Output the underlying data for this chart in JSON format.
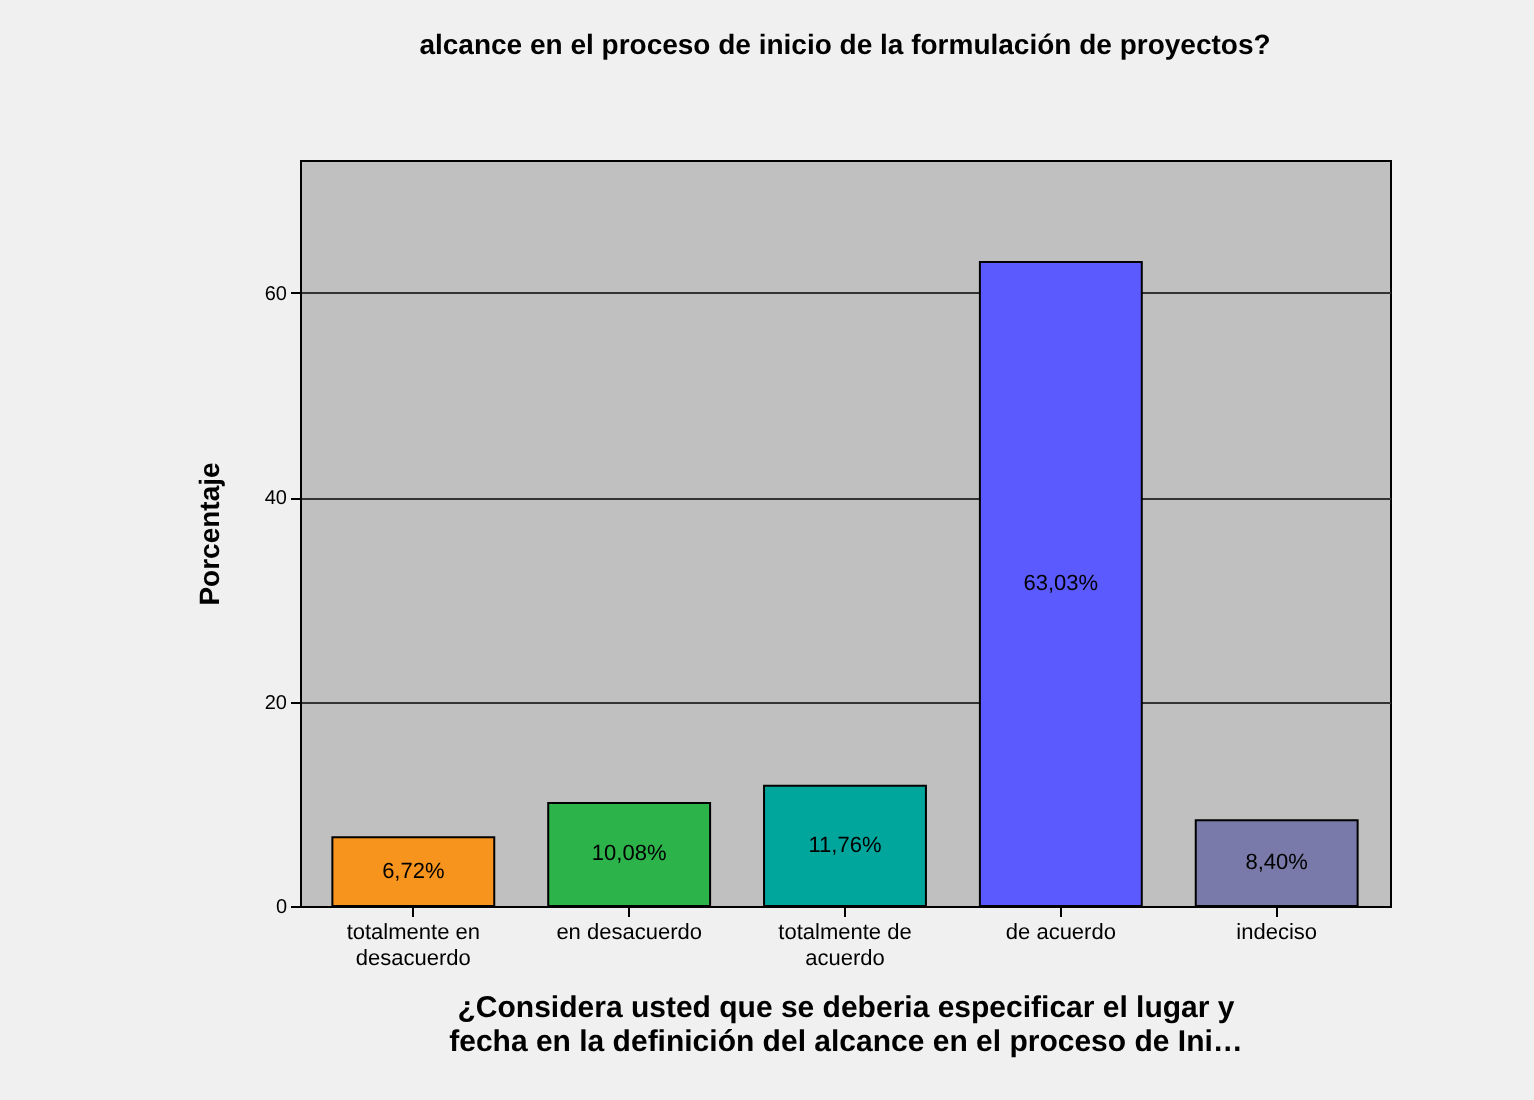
{
  "chart_data": {
    "type": "bar",
    "title": "alcance en el proceso de inicio de la formulación de proyectos?",
    "xlabel": "¿Considera usted que se deberia especificar el lugar y fecha en la  definición del alcance en el proceso de Ini…",
    "ylabel": "Porcentaje",
    "categories": [
      "totalmente en desacuerdo",
      "en desacuerdo",
      "totalmente de acuerdo",
      "de acuerdo",
      "indeciso"
    ],
    "values": [
      6.72,
      10.08,
      11.76,
      63.03,
      8.4
    ],
    "value_labels": [
      "6,72%",
      "10,08%",
      "11,76%",
      "63,03%",
      "8,40%"
    ],
    "colors": [
      "#f7941d",
      "#2cb34a",
      "#00a59c",
      "#5a5aff",
      "#7a7aaa"
    ],
    "ylim": [
      0,
      73
    ],
    "yticks": [
      0,
      20,
      40,
      60
    ],
    "grid": "y"
  }
}
